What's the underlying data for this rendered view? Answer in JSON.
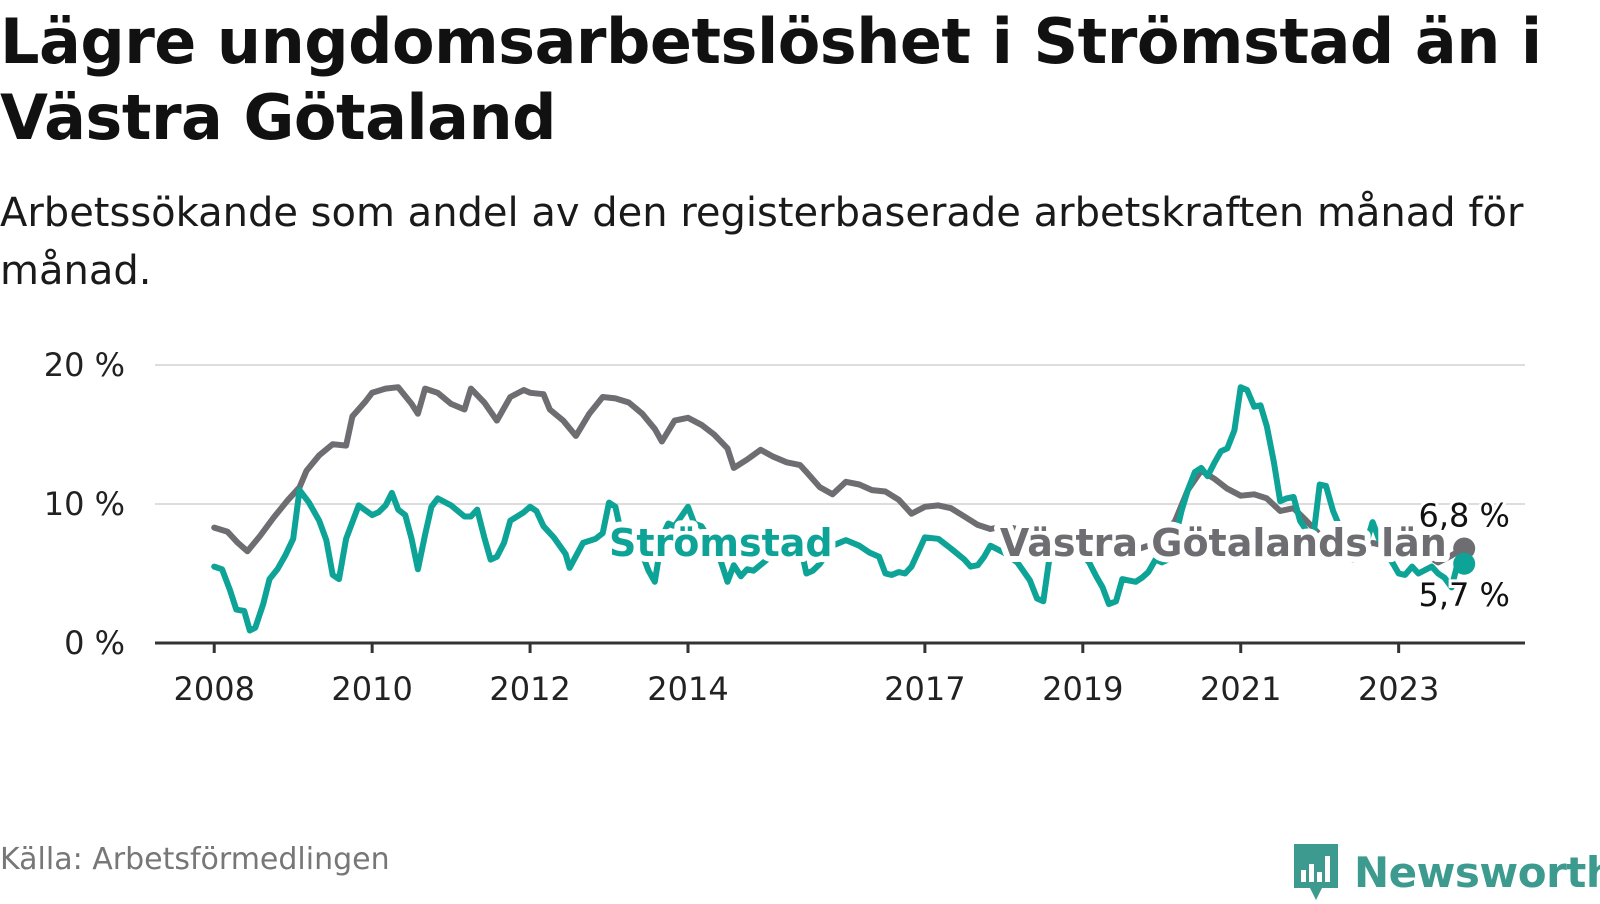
{
  "title": "Lägre ungdomsarbetslöshet i Strömstad än i Västra Götaland",
  "subtitle": "Arbetssökande som andel av den registerbaserade arbetskraften månad för månad.",
  "source": "Källa: Arbetsförmedlingen",
  "brand": "Newsworthy",
  "colors": {
    "stromstad": "#0da396",
    "vg": "#6d6d72",
    "grid": "#dddddd",
    "axis": "#333333"
  },
  "chart_data": {
    "type": "line",
    "title": "Lägre ungdomsarbetslöshet i Strömstad än i Västra Götaland",
    "ylabel": "",
    "xlabel": "",
    "ylim": [
      0,
      20
    ],
    "xlim": [
      2007.25,
      2024.6
    ],
    "y_ticks": [
      0,
      10,
      20
    ],
    "y_tick_labels": [
      "0 %",
      "10 %",
      "20 %"
    ],
    "x_ticks": [
      2008,
      2010,
      2012,
      2014,
      2017,
      2019,
      2021,
      2023
    ],
    "x_tick_labels": [
      "2008",
      "2010",
      "2012",
      "2014",
      "2017",
      "2019",
      "2021",
      "2023"
    ],
    "series": [
      {
        "name": "Västra Götalands län",
        "key": "vg",
        "end_label": "6,8 %",
        "points": [
          [
            2008.0,
            8.3
          ],
          [
            2008.17,
            8.0
          ],
          [
            2008.3,
            7.2
          ],
          [
            2008.42,
            6.6
          ],
          [
            2008.58,
            7.7
          ],
          [
            2008.75,
            9.0
          ],
          [
            2008.92,
            10.2
          ],
          [
            2009.08,
            11.2
          ],
          [
            2009.17,
            12.4
          ],
          [
            2009.33,
            13.5
          ],
          [
            2009.5,
            14.3
          ],
          [
            2009.67,
            14.2
          ],
          [
            2009.75,
            16.3
          ],
          [
            2009.92,
            17.4
          ],
          [
            2010.0,
            18.0
          ],
          [
            2010.17,
            18.3
          ],
          [
            2010.33,
            18.4
          ],
          [
            2010.5,
            17.2
          ],
          [
            2010.58,
            16.5
          ],
          [
            2010.67,
            18.3
          ],
          [
            2010.83,
            18.0
          ],
          [
            2011.0,
            17.2
          ],
          [
            2011.17,
            16.8
          ],
          [
            2011.25,
            18.3
          ],
          [
            2011.42,
            17.3
          ],
          [
            2011.58,
            16.0
          ],
          [
            2011.75,
            17.7
          ],
          [
            2011.92,
            18.2
          ],
          [
            2012.0,
            18.0
          ],
          [
            2012.17,
            17.9
          ],
          [
            2012.25,
            16.8
          ],
          [
            2012.42,
            16.0
          ],
          [
            2012.58,
            14.9
          ],
          [
            2012.75,
            16.5
          ],
          [
            2012.92,
            17.7
          ],
          [
            2013.08,
            17.6
          ],
          [
            2013.25,
            17.3
          ],
          [
            2013.42,
            16.5
          ],
          [
            2013.58,
            15.4
          ],
          [
            2013.67,
            14.5
          ],
          [
            2013.83,
            16.0
          ],
          [
            2014.0,
            16.2
          ],
          [
            2014.17,
            15.7
          ],
          [
            2014.33,
            15.0
          ],
          [
            2014.5,
            14.0
          ],
          [
            2014.58,
            12.6
          ],
          [
            2014.75,
            13.2
          ],
          [
            2014.92,
            13.9
          ],
          [
            2015.08,
            13.4
          ],
          [
            2015.25,
            13.0
          ],
          [
            2015.42,
            12.8
          ],
          [
            2015.5,
            12.3
          ],
          [
            2015.67,
            11.2
          ],
          [
            2015.83,
            10.7
          ],
          [
            2016.0,
            11.6
          ],
          [
            2016.17,
            11.4
          ],
          [
            2016.33,
            11.0
          ],
          [
            2016.5,
            10.9
          ],
          [
            2016.67,
            10.3
          ],
          [
            2016.83,
            9.3
          ],
          [
            2017.0,
            9.8
          ],
          [
            2017.17,
            9.9
          ],
          [
            2017.33,
            9.7
          ],
          [
            2017.5,
            9.1
          ],
          [
            2017.67,
            8.5
          ],
          [
            2017.83,
            8.2
          ],
          [
            2018.0,
            8.4
          ],
          [
            2018.17,
            8.2
          ],
          [
            2018.33,
            7.9
          ],
          [
            2018.5,
            7.5
          ],
          [
            2018.67,
            7.3
          ],
          [
            2018.83,
            7.1
          ],
          [
            2019.0,
            6.9
          ],
          [
            2019.17,
            6.8
          ],
          [
            2019.33,
            6.7
          ],
          [
            2019.5,
            6.6
          ],
          [
            2019.67,
            6.7
          ],
          [
            2019.83,
            7.0
          ],
          [
            2020.0,
            7.5
          ],
          [
            2020.17,
            8.8
          ],
          [
            2020.33,
            11.0
          ],
          [
            2020.5,
            12.4
          ],
          [
            2020.67,
            11.8
          ],
          [
            2020.83,
            11.1
          ],
          [
            2021.0,
            10.6
          ],
          [
            2021.17,
            10.7
          ],
          [
            2021.33,
            10.4
          ],
          [
            2021.5,
            9.5
          ],
          [
            2021.67,
            9.7
          ],
          [
            2021.83,
            8.8
          ],
          [
            2022.0,
            7.8
          ],
          [
            2022.17,
            7.9
          ],
          [
            2022.33,
            7.5
          ],
          [
            2022.5,
            6.8
          ],
          [
            2022.67,
            7.2
          ],
          [
            2022.83,
            7.0
          ],
          [
            2023.0,
            6.9
          ],
          [
            2023.17,
            6.6
          ],
          [
            2023.33,
            6.4
          ],
          [
            2023.5,
            5.8
          ],
          [
            2023.67,
            6.3
          ],
          [
            2023.83,
            6.8
          ]
        ]
      },
      {
        "name": "Strömstad",
        "key": "stromstad",
        "end_label": "5,7 %",
        "points": [
          [
            2008.0,
            5.5
          ],
          [
            2008.1,
            5.3
          ],
          [
            2008.2,
            3.8
          ],
          [
            2008.28,
            2.4
          ],
          [
            2008.38,
            2.3
          ],
          [
            2008.45,
            0.9
          ],
          [
            2008.52,
            1.1
          ],
          [
            2008.62,
            2.8
          ],
          [
            2008.7,
            4.6
          ],
          [
            2008.8,
            5.3
          ],
          [
            2008.9,
            6.3
          ],
          [
            2009.0,
            7.5
          ],
          [
            2009.08,
            11.0
          ],
          [
            2009.2,
            10.1
          ],
          [
            2009.33,
            8.8
          ],
          [
            2009.42,
            7.4
          ],
          [
            2009.5,
            4.9
          ],
          [
            2009.58,
            4.6
          ],
          [
            2009.67,
            7.5
          ],
          [
            2009.83,
            9.9
          ],
          [
            2010.0,
            9.2
          ],
          [
            2010.08,
            9.4
          ],
          [
            2010.17,
            9.9
          ],
          [
            2010.25,
            10.8
          ],
          [
            2010.33,
            9.6
          ],
          [
            2010.42,
            9.2
          ],
          [
            2010.5,
            7.5
          ],
          [
            2010.58,
            5.3
          ],
          [
            2010.67,
            7.8
          ],
          [
            2010.75,
            9.8
          ],
          [
            2010.83,
            10.4
          ],
          [
            2011.0,
            9.9
          ],
          [
            2011.17,
            9.1
          ],
          [
            2011.25,
            9.1
          ],
          [
            2011.33,
            9.6
          ],
          [
            2011.42,
            7.6
          ],
          [
            2011.5,
            6.0
          ],
          [
            2011.58,
            6.2
          ],
          [
            2011.67,
            7.2
          ],
          [
            2011.75,
            8.8
          ],
          [
            2011.92,
            9.4
          ],
          [
            2012.0,
            9.8
          ],
          [
            2012.08,
            9.5
          ],
          [
            2012.17,
            8.4
          ],
          [
            2012.3,
            7.6
          ],
          [
            2012.45,
            6.4
          ],
          [
            2012.5,
            5.4
          ],
          [
            2012.67,
            7.2
          ],
          [
            2012.83,
            7.5
          ],
          [
            2012.92,
            7.9
          ],
          [
            2013.0,
            10.1
          ],
          [
            2013.08,
            9.8
          ],
          [
            2013.17,
            7.5
          ],
          [
            2013.3,
            7.4
          ],
          [
            2013.42,
            6.4
          ],
          [
            2013.5,
            5.2
          ],
          [
            2013.58,
            4.4
          ],
          [
            2013.67,
            7.6
          ],
          [
            2013.75,
            8.6
          ],
          [
            2013.83,
            8.4
          ],
          [
            2014.0,
            9.8
          ],
          [
            2014.08,
            8.6
          ],
          [
            2014.17,
            8.4
          ],
          [
            2014.3,
            7.2
          ],
          [
            2014.42,
            5.8
          ],
          [
            2014.5,
            4.4
          ],
          [
            2014.58,
            5.6
          ],
          [
            2014.67,
            4.8
          ],
          [
            2014.75,
            5.3
          ],
          [
            2014.83,
            5.2
          ],
          [
            2015.0,
            6.0
          ],
          [
            2015.08,
            6.3
          ],
          [
            2015.17,
            7.7
          ],
          [
            2015.25,
            7.3
          ],
          [
            2015.33,
            6.5
          ],
          [
            2015.42,
            7.1
          ],
          [
            2015.5,
            5.0
          ],
          [
            2015.58,
            5.2
          ],
          [
            2015.67,
            5.7
          ],
          [
            2015.83,
            7.0
          ],
          [
            2016.0,
            7.4
          ],
          [
            2016.17,
            7.0
          ],
          [
            2016.3,
            6.5
          ],
          [
            2016.42,
            6.2
          ],
          [
            2016.5,
            5.0
          ],
          [
            2016.58,
            4.9
          ],
          [
            2016.67,
            5.1
          ],
          [
            2016.75,
            5.0
          ],
          [
            2016.83,
            5.5
          ],
          [
            2017.0,
            7.6
          ],
          [
            2017.17,
            7.5
          ],
          [
            2017.33,
            6.8
          ],
          [
            2017.5,
            6.0
          ],
          [
            2017.58,
            5.5
          ],
          [
            2017.67,
            5.6
          ],
          [
            2017.75,
            6.2
          ],
          [
            2017.83,
            7.0
          ],
          [
            2018.0,
            6.5
          ],
          [
            2018.17,
            5.8
          ],
          [
            2018.33,
            4.5
          ],
          [
            2018.42,
            3.2
          ],
          [
            2018.5,
            3.0
          ],
          [
            2018.58,
            6.2
          ],
          [
            2018.67,
            6.8
          ],
          [
            2018.83,
            7.1
          ],
          [
            2019.0,
            6.3
          ],
          [
            2019.08,
            5.8
          ],
          [
            2019.17,
            4.8
          ],
          [
            2019.25,
            4.0
          ],
          [
            2019.33,
            2.8
          ],
          [
            2019.42,
            3.0
          ],
          [
            2019.5,
            4.6
          ],
          [
            2019.58,
            4.5
          ],
          [
            2019.67,
            4.4
          ],
          [
            2019.75,
            4.7
          ],
          [
            2019.83,
            5.1
          ],
          [
            2019.92,
            6.0
          ],
          [
            2020.0,
            5.8
          ],
          [
            2020.08,
            6.0
          ],
          [
            2020.17,
            7.6
          ],
          [
            2020.25,
            9.5
          ],
          [
            2020.33,
            11.0
          ],
          [
            2020.42,
            12.3
          ],
          [
            2020.5,
            12.6
          ],
          [
            2020.58,
            12.0
          ],
          [
            2020.67,
            13.0
          ],
          [
            2020.75,
            13.8
          ],
          [
            2020.83,
            14.0
          ],
          [
            2020.92,
            15.3
          ],
          [
            2021.0,
            18.4
          ],
          [
            2021.08,
            18.2
          ],
          [
            2021.17,
            17.0
          ],
          [
            2021.25,
            17.1
          ],
          [
            2021.33,
            15.6
          ],
          [
            2021.42,
            13.0
          ],
          [
            2021.5,
            10.2
          ],
          [
            2021.58,
            10.4
          ],
          [
            2021.67,
            10.5
          ],
          [
            2021.75,
            8.8
          ],
          [
            2021.83,
            8.1
          ],
          [
            2021.92,
            7.7
          ],
          [
            2022.0,
            11.4
          ],
          [
            2022.08,
            11.3
          ],
          [
            2022.17,
            9.5
          ],
          [
            2022.25,
            8.4
          ],
          [
            2022.33,
            7.0
          ],
          [
            2022.42,
            6.0
          ],
          [
            2022.5,
            6.2
          ],
          [
            2022.58,
            7.0
          ],
          [
            2022.67,
            8.7
          ],
          [
            2022.75,
            7.5
          ],
          [
            2022.83,
            6.5
          ],
          [
            2022.92,
            5.8
          ],
          [
            2023.0,
            5.0
          ],
          [
            2023.08,
            4.9
          ],
          [
            2023.17,
            5.5
          ],
          [
            2023.25,
            5.0
          ],
          [
            2023.42,
            5.5
          ],
          [
            2023.5,
            5.0
          ],
          [
            2023.58,
            4.7
          ],
          [
            2023.67,
            4.0
          ],
          [
            2023.75,
            5.8
          ],
          [
            2023.83,
            5.7
          ]
        ]
      }
    ],
    "annotations": [
      {
        "text": "Strömstad",
        "series": "stromstad",
        "anchor": [
          2013.0,
          7.2
        ]
      },
      {
        "text": "Västra Götalands län",
        "series": "vg",
        "anchor": [
          2017.95,
          7.2
        ]
      }
    ]
  }
}
